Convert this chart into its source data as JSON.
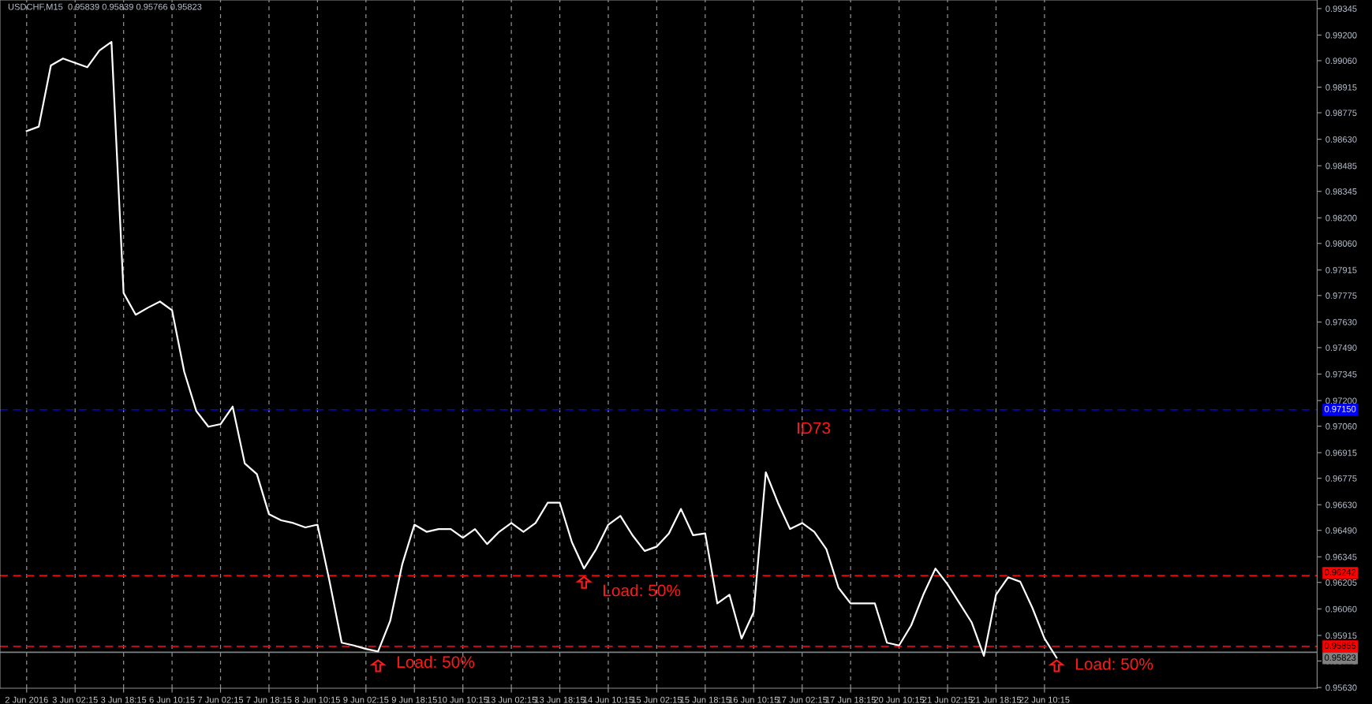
{
  "chart_data": {
    "type": "line",
    "title": "USDCHF,M15  0.95839 0.95839 0.95766 0.95823",
    "categories": [
      "2 Jun 2016",
      null,
      null,
      null,
      "3 Jun 02:15",
      null,
      null,
      null,
      "3 Jun 18:15",
      null,
      null,
      null,
      "6 Jun 10:15",
      null,
      null,
      null,
      "7 Jun 02:15",
      null,
      null,
      null,
      "7 Jun 18:15",
      null,
      null,
      null,
      "8 Jun 10:15",
      null,
      null,
      null,
      "9 Jun 02:15",
      null,
      null,
      null,
      "9 Jun 18:15",
      null,
      null,
      null,
      "10 Jun 10:15",
      null,
      null,
      null,
      "13 Jun 02:15",
      null,
      null,
      null,
      "13 Jun 18:15",
      null,
      null,
      null,
      "14 Jun 10:15",
      null,
      null,
      null,
      "15 Jun 02:15",
      null,
      null,
      null,
      "15 Jun 18:15",
      null,
      null,
      null,
      "16 Jun 10:15",
      null,
      null,
      null,
      "17 Jun 02:15",
      null,
      null,
      null,
      "17 Jun 18:15",
      null,
      null,
      null,
      "20 Jun 10:15",
      null,
      null,
      null,
      "21 Jun 02:15",
      null,
      null,
      null,
      "21 Jun 18:15",
      null,
      null,
      null,
      "22 Jun 10:15",
      null,
      null,
      null,
      null,
      null,
      null,
      null,
      null,
      null,
      null,
      null,
      null,
      null,
      null,
      null,
      null,
      null,
      null,
      null,
      null,
      null,
      null
    ],
    "series": [
      {
        "color": "#ffffff",
        "values": [
          0.98675,
          0.98699,
          0.99034,
          0.99072,
          0.99048,
          0.99024,
          0.99115,
          0.99163,
          0.97789,
          0.9767,
          0.97708,
          0.97742,
          0.97694,
          0.97359,
          0.97143,
          0.97057,
          0.97071,
          0.97167,
          0.96856,
          0.96798,
          0.96578,
          0.96545,
          0.9653,
          0.96506,
          0.96521,
          0.9621,
          0.95875,
          0.9586,
          0.95841,
          0.95827,
          0.95994,
          0.96305,
          0.96521,
          0.96482,
          0.96497,
          0.96497,
          0.96449,
          0.96497,
          0.96415,
          0.96482,
          0.9653,
          0.96482,
          0.9653,
          0.96641,
          0.96641,
          0.96425,
          0.96281,
          0.96387,
          0.96521,
          0.96569,
          0.96463,
          0.96377,
          0.96401,
          0.96473,
          0.96607,
          0.96463,
          0.96473,
          0.9609,
          0.96138,
          0.95898,
          0.96042,
          0.96808,
          0.96641,
          0.96497,
          0.9653,
          0.96482,
          0.96387,
          0.96176,
          0.9609,
          0.9609,
          0.9609,
          0.95875,
          0.9586,
          0.9597,
          0.96138,
          0.96281,
          0.96195,
          0.9609,
          0.95985,
          0.95803,
          0.96138,
          0.96233,
          0.96209,
          0.96066,
          0.95898,
          0.95793,
          null,
          null,
          null,
          null,
          null,
          null,
          null,
          null,
          null,
          null,
          null,
          null,
          null,
          null,
          null,
          null,
          null,
          null,
          null,
          null,
          null
        ]
      }
    ],
    "ylim": [
      0.95626,
      0.99392
    ],
    "yticks": [
      0.99345,
      {
        "value": 0.992,
        "label": "0.99200"
      },
      {
        "value": 0.9906,
        "label": "0.99060"
      },
      0.98915,
      0.98775,
      {
        "value": 0.9863,
        "label": "0.98630"
      },
      0.98485,
      0.98345,
      {
        "value": 0.982,
        "label": "0.98200"
      },
      {
        "value": 0.9806,
        "label": "0.98060"
      },
      0.97915,
      0.97775,
      {
        "value": 0.9763,
        "label": "0.97630"
      },
      {
        "value": 0.9749,
        "label": "0.97490"
      },
      0.97345,
      {
        "value": 0.972,
        "label": "0.97200"
      },
      {
        "value": 0.9706,
        "label": "0.97060"
      },
      0.96915,
      0.96775,
      {
        "value": 0.9663,
        "label": "0.96630"
      },
      {
        "value": 0.9649,
        "label": "0.96490"
      },
      0.96345,
      0.96205,
      {
        "value": 0.9606,
        "label": "0.96060"
      },
      0.95915,
      0.95775,
      {
        "value": 0.9563,
        "label": "0.95630"
      }
    ],
    "ref_lines": [
      {
        "axis": "y",
        "value": 0.9715,
        "label": "0.97150",
        "color": "#0000ff",
        "line_style": "dashed"
      },
      {
        "axis": "y",
        "value": 0.96242,
        "label": "0.96242",
        "color": "#ff0000",
        "line_style": "dashed"
      },
      {
        "axis": "y",
        "value": 0.95855,
        "label": "0.95855",
        "color": "#ff0000",
        "line_style": "dashed"
      },
      {
        "axis": "y",
        "value": 0.95823,
        "label": "0.95823",
        "color": "#808080",
        "line_style": "solid"
      }
    ],
    "annotations": [
      "ID73",
      "Load: 50%",
      "Load: 50%",
      "Load: 50%"
    ],
    "grid": "x",
    "legend": false,
    "marker": "none",
    "line_style": "solid"
  }
}
